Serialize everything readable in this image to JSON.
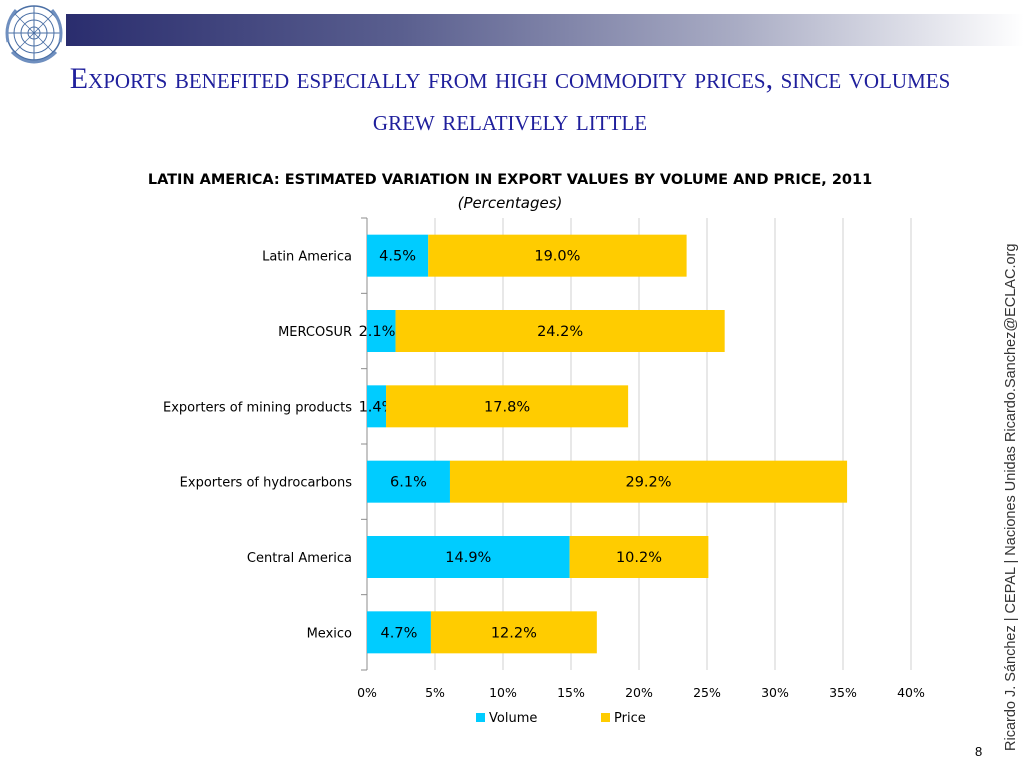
{
  "slide": {
    "title": "Exports benefited especially from high commodity prices, since volumes grew relatively little",
    "side_credit": "Ricardo J. Sánchez | CEPAL | Naciones Unidas   Ricardo.Sanchez@ECLAC.org",
    "page_number": "8",
    "colors": {
      "title": "#1f1f9c",
      "volume": "#00ccff",
      "price": "#ffcc00",
      "topbar_dark": "#2a2d6e"
    },
    "logo": "un-emblem-icon"
  },
  "chart_data": {
    "type": "bar",
    "orientation": "horizontal",
    "stacked": true,
    "title": "LATIN AMERICA:  ESTIMATED VARIATION IN EXPORT VALUES BY VOLUME AND PRICE, 2011",
    "subtitle": "(Percentages)",
    "categories": [
      "Latin America",
      "MERCOSUR",
      "Exporters of mining products",
      "Exporters of hydrocarbons",
      "Central America",
      "Mexico"
    ],
    "series": [
      {
        "name": "Volume",
        "color": "#00ccff",
        "values": [
          4.5,
          2.1,
          1.4,
          6.1,
          14.9,
          4.7
        ],
        "labels": [
          "4.5%",
          "2.1%",
          "1.4%",
          "6.1%",
          "14.9%",
          "4.7%"
        ]
      },
      {
        "name": "Price",
        "color": "#ffcc00",
        "values": [
          19.0,
          24.2,
          17.8,
          29.2,
          10.2,
          12.2
        ],
        "labels": [
          "19.0%",
          "24.2%",
          "17.8%",
          "29.2%",
          "10.2%",
          "12.2%"
        ]
      }
    ],
    "xlim": [
      0,
      40
    ],
    "xticks": [
      "0%",
      "5%",
      "10%",
      "15%",
      "20%",
      "25%",
      "30%",
      "35%",
      "40%"
    ],
    "grid": "vertical",
    "legend": "bottom"
  }
}
